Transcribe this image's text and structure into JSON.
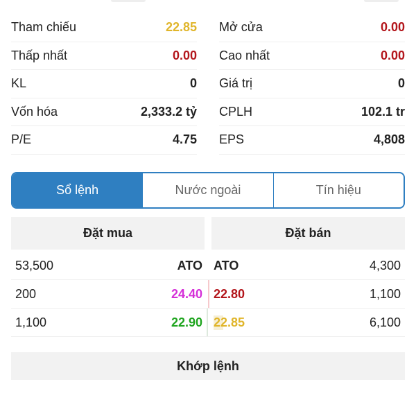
{
  "stats": [
    {
      "label": "Tham chiếu",
      "value": "22.85",
      "color": "#e0b52a"
    },
    {
      "label": "Mở cửa",
      "value": "0.00",
      "color": "#b3151b"
    },
    {
      "label": "Thấp nhất",
      "value": "0.00",
      "color": "#b3151b"
    },
    {
      "label": "Cao nhất",
      "value": "0.00",
      "color": "#b3151b"
    },
    {
      "label": "KL",
      "value": "0",
      "color": "#222222"
    },
    {
      "label": "Giá trị",
      "value": "0",
      "color": "#222222"
    },
    {
      "label": "Vốn hóa",
      "value": "2,333.2 tỷ",
      "color": "#222222"
    },
    {
      "label": "CPLH",
      "value": "102.1 tr",
      "color": "#222222"
    },
    {
      "label": "P/E",
      "value": "4.75",
      "color": "#222222"
    },
    {
      "label": "EPS",
      "value": "4,808",
      "color": "#222222"
    }
  ],
  "tabs": [
    {
      "label": "Sổ lệnh",
      "active": true
    },
    {
      "label": "Nước ngoài",
      "active": false
    },
    {
      "label": "Tín hiệu",
      "active": false
    }
  ],
  "accent": "#2f7fc1",
  "orderbook": {
    "buy_header": "Đặt mua",
    "sell_header": "Đặt bán",
    "rows": [
      {
        "buy_vol": "53,500",
        "buy_price": "ATO",
        "buy_color": "#222222",
        "sell_price": "ATO",
        "sell_color": "#222222",
        "sell_vol": "4,300"
      },
      {
        "buy_vol": "200",
        "buy_price": "24.40",
        "buy_color": "#d52fd8",
        "sell_price": "22.80",
        "sell_color": "#b3151b",
        "sell_vol": "1,100"
      },
      {
        "buy_vol": "1,100",
        "buy_price": "22.90",
        "buy_color": "#1fa51f",
        "sell_price": "22.85",
        "sell_color": "#e0b52a",
        "sell_vol": "6,100"
      }
    ]
  },
  "match_label": "Khớp lệnh"
}
